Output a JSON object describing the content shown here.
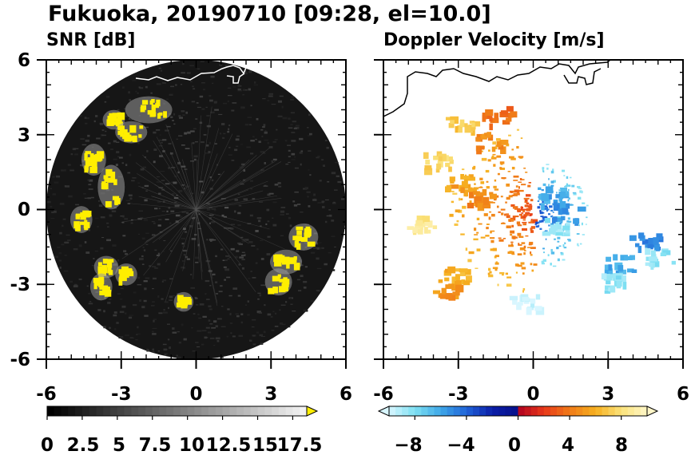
{
  "title": "Fukuoka, 20190710 [09:28, el=10.0]",
  "chart_data": [
    {
      "type": "heatmap",
      "panel_title": "SNR [dB]",
      "xlim": [
        -6,
        6
      ],
      "ylim": [
        -6,
        6
      ],
      "x_ticks": [
        "-6",
        "-3",
        "0",
        "3",
        "6"
      ],
      "y_ticks": [
        "6",
        "3",
        "0",
        "-3",
        "-6"
      ],
      "range_radius": 6,
      "colorbar": {
        "ticks": [
          "0",
          "2.5",
          "5",
          "7.5",
          "10",
          "12.5",
          "15",
          "17.5"
        ],
        "min": 0,
        "max": 18.5,
        "extend": "max",
        "low_color": "#000000",
        "high_color": "#f2f2f2",
        "over_color": "#ffee00"
      },
      "echo_color": "#ffee00",
      "echoes": [
        {
          "x": -1.9,
          "y": 4.0,
          "w": 1.5,
          "h": 0.7
        },
        {
          "x": -3.3,
          "y": 3.6,
          "w": 0.5,
          "h": 0.4
        },
        {
          "x": -2.6,
          "y": 3.1,
          "w": 0.9,
          "h": 0.5
        },
        {
          "x": -4.1,
          "y": 2.0,
          "w": 0.6,
          "h": 0.9
        },
        {
          "x": -3.4,
          "y": 0.9,
          "w": 0.7,
          "h": 1.4
        },
        {
          "x": -4.6,
          "y": -0.4,
          "w": 0.5,
          "h": 0.7
        },
        {
          "x": -3.6,
          "y": -2.3,
          "w": 0.6,
          "h": 0.5
        },
        {
          "x": -2.8,
          "y": -2.6,
          "w": 0.5,
          "h": 0.5
        },
        {
          "x": -3.8,
          "y": -3.1,
          "w": 0.5,
          "h": 0.7
        },
        {
          "x": -0.5,
          "y": -3.7,
          "w": 0.4,
          "h": 0.4
        },
        {
          "x": 4.3,
          "y": -1.1,
          "w": 0.8,
          "h": 0.7
        },
        {
          "x": 3.6,
          "y": -2.1,
          "w": 0.9,
          "h": 0.6
        },
        {
          "x": 3.3,
          "y": -2.9,
          "w": 0.7,
          "h": 0.7
        }
      ]
    },
    {
      "type": "heatmap",
      "panel_title": "Doppler Velocity [m/s]",
      "xlim": [
        -6,
        6
      ],
      "ylim": [
        -6,
        6
      ],
      "x_ticks": [
        "-6",
        "-3",
        "0",
        "3",
        "6"
      ],
      "y_ticks": [],
      "colorbar": {
        "ticks": [
          "−8",
          "−4",
          "0",
          "4",
          "8"
        ],
        "min": -10,
        "max": 10,
        "extend": "both"
      },
      "echoes": [
        {
          "x": -1.5,
          "y": 3.8,
          "v": 3.5
        },
        {
          "x": -1.9,
          "y": 2.8,
          "v": 4.5
        },
        {
          "x": -3.0,
          "y": 3.6,
          "v": 7.0
        },
        {
          "x": -3.0,
          "y": 1.1,
          "v": 5.5
        },
        {
          "x": -2.2,
          "y": 0.5,
          "v": 4.5
        },
        {
          "x": -3.9,
          "y": 2.0,
          "v": 7.5
        },
        {
          "x": -4.5,
          "y": -0.5,
          "v": 8.5
        },
        {
          "x": -3.1,
          "y": -2.6,
          "v": 6.0
        },
        {
          "x": -3.5,
          "y": -3.1,
          "v": 5.0
        },
        {
          "x": 0.6,
          "y": 0.6,
          "v": -6.0
        },
        {
          "x": 0.8,
          "y": -0.6,
          "v": -8.5
        },
        {
          "x": 1.3,
          "y": 0.0,
          "v": -5.5
        },
        {
          "x": 3.4,
          "y": -2.1,
          "v": -6.0
        },
        {
          "x": 4.4,
          "y": -1.2,
          "v": -5.0
        },
        {
          "x": 5.0,
          "y": -1.9,
          "v": -8.5
        },
        {
          "x": 3.3,
          "y": -2.9,
          "v": -8.5
        },
        {
          "x": -0.4,
          "y": -3.7,
          "v": -10.0
        }
      ]
    }
  ]
}
